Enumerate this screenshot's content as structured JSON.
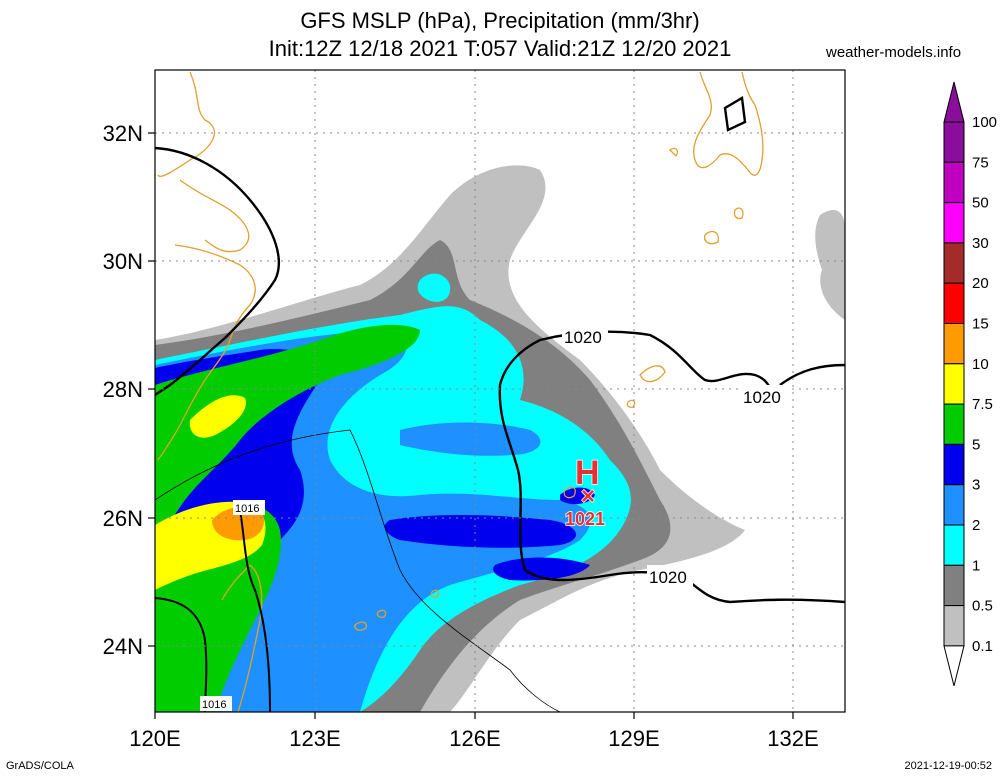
{
  "title": {
    "line1": "GFS MSLP (hPa), Precipitation (mm/3hr)",
    "line2": "Init:12Z 12/18 2021 T:057 Valid:21Z 12/20 2021"
  },
  "site": "weather-models.info",
  "footer": {
    "left": "GrADS/COLA",
    "right": "2021-12-19-00:52"
  },
  "axes": {
    "lat_labels": [
      "32N",
      "30N",
      "28N",
      "26N",
      "24N"
    ],
    "lon_labels": [
      "120E",
      "123E",
      "126E",
      "129E",
      "132E"
    ]
  },
  "isobars": {
    "label_1020_a": "1020",
    "label_1020_b": "1020",
    "label_1020_c": "1020",
    "label_1016_a": "1016",
    "label_1016_b": "1016"
  },
  "high": {
    "symbol": "H",
    "marker": "×",
    "value": "1021"
  },
  "colorbar": {
    "levels": [
      "100",
      "75",
      "50",
      "30",
      "20",
      "15",
      "10",
      "7.5",
      "5",
      "3",
      "2",
      "1",
      "0.5",
      "0.1"
    ],
    "colors": [
      "#8a0d9b",
      "#c000c0",
      "#ff00ff",
      "#a52a2a",
      "#ff0000",
      "#ff9b00",
      "#ffff00",
      "#00cc00",
      "#0000ee",
      "#1e90ff",
      "#00ffff",
      "#808080",
      "#c0c0c0"
    ]
  },
  "colors": {
    "coast": "#e0a030",
    "isobar": "#000000",
    "high": "#e83030",
    "p01": "#c0c0c0",
    "p05": "#808080",
    "p1": "#00ffff",
    "p2": "#1e90ff",
    "p3": "#0000ee",
    "p5": "#00cc00",
    "p75": "#ffff00",
    "p10": "#ff9b00"
  }
}
